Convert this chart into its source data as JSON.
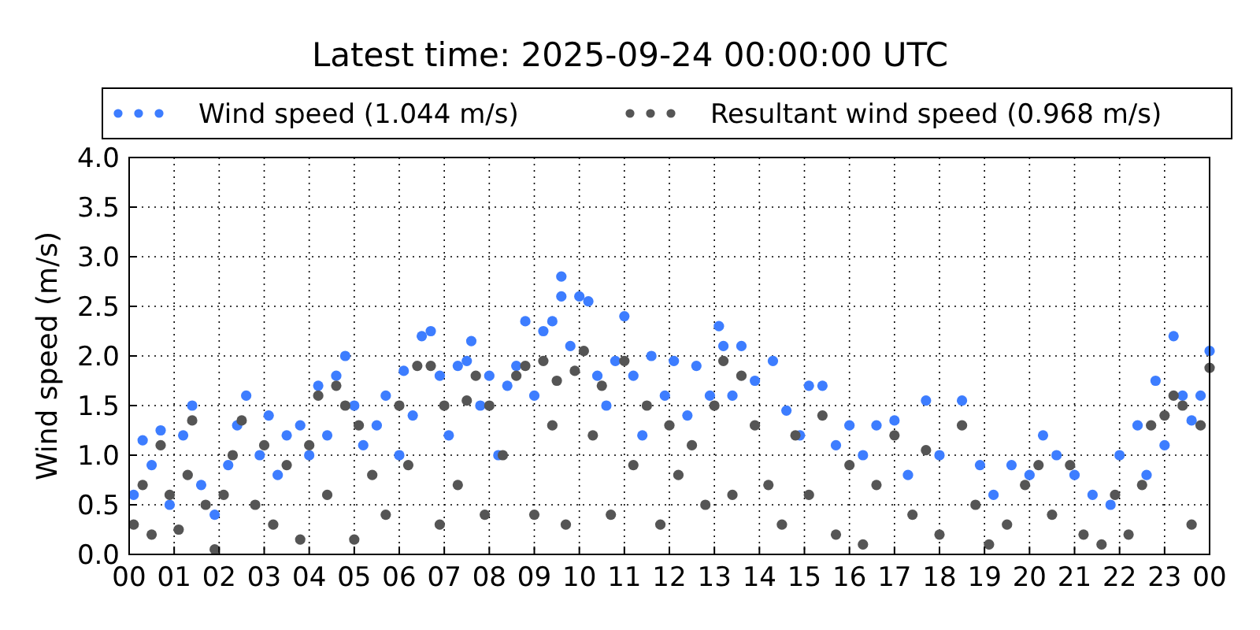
{
  "chart_data": {
    "type": "scatter",
    "title": "Latest time: 2025-09-24 00:00:00 UTC",
    "ylabel": "Wind speed (m/s)",
    "xlim": [
      0,
      24
    ],
    "xticks": [
      {
        "value": 0,
        "label": "00"
      },
      {
        "value": 1,
        "label": "01"
      },
      {
        "value": 2,
        "label": "02"
      },
      {
        "value": 3,
        "label": "03"
      },
      {
        "value": 4,
        "label": "04"
      },
      {
        "value": 5,
        "label": "05"
      },
      {
        "value": 6,
        "label": "06"
      },
      {
        "value": 7,
        "label": "07"
      },
      {
        "value": 8,
        "label": "08"
      },
      {
        "value": 9,
        "label": "09"
      },
      {
        "value": 10,
        "label": "10"
      },
      {
        "value": 11,
        "label": "11"
      },
      {
        "value": 12,
        "label": "12"
      },
      {
        "value": 13,
        "label": "13"
      },
      {
        "value": 14,
        "label": "14"
      },
      {
        "value": 15,
        "label": "15"
      },
      {
        "value": 16,
        "label": "16"
      },
      {
        "value": 17,
        "label": "17"
      },
      {
        "value": 18,
        "label": "18"
      },
      {
        "value": 19,
        "label": "19"
      },
      {
        "value": 20,
        "label": "20"
      },
      {
        "value": 21,
        "label": "21"
      },
      {
        "value": 22,
        "label": "22"
      },
      {
        "value": 23,
        "label": "23"
      },
      {
        "value": 24,
        "label": "00"
      }
    ],
    "ylim": [
      0,
      4
    ],
    "yticks": [
      {
        "value": 0,
        "label": "0.0"
      },
      {
        "value": 0.5,
        "label": "0.5"
      },
      {
        "value": 1,
        "label": "1.0"
      },
      {
        "value": 1.5,
        "label": "1.5"
      },
      {
        "value": 2,
        "label": "2.0"
      },
      {
        "value": 2.5,
        "label": "2.5"
      },
      {
        "value": 3,
        "label": "3.0"
      },
      {
        "value": 3.5,
        "label": "3.5"
      },
      {
        "value": 4,
        "label": "4.0"
      }
    ],
    "grid": true,
    "legend": "top",
    "marker": "circle",
    "series": [
      {
        "name": "Wind speed (1.044 m/s)",
        "color": "#3d7dff",
        "x": [
          0.1,
          0.3,
          0.5,
          0.7,
          0.9,
          1.2,
          1.4,
          1.6,
          1.9,
          2.2,
          2.4,
          2.6,
          2.9,
          3.1,
          3.3,
          3.5,
          3.8,
          4.0,
          4.2,
          4.4,
          4.6,
          4.8,
          5.0,
          5.2,
          5.5,
          5.7,
          6.0,
          6.1,
          6.3,
          6.5,
          6.7,
          6.9,
          7.1,
          7.3,
          7.5,
          7.6,
          7.8,
          8.0,
          8.2,
          8.4,
          8.6,
          8.8,
          9.0,
          9.2,
          9.4,
          9.6,
          9.6,
          9.8,
          10.0,
          10.2,
          10.4,
          10.6,
          10.8,
          11.0,
          11.2,
          11.4,
          11.6,
          11.9,
          12.1,
          12.4,
          12.6,
          12.9,
          13.1,
          13.2,
          13.4,
          13.6,
          13.9,
          14.3,
          14.6,
          14.9,
          15.1,
          15.4,
          15.7,
          16.0,
          16.3,
          16.6,
          17.0,
          17.3,
          17.7,
          18.0,
          18.5,
          18.9,
          19.2,
          19.6,
          20.0,
          20.3,
          20.6,
          21.0,
          21.4,
          21.8,
          22.0,
          22.4,
          22.6,
          22.8,
          23.0,
          23.2,
          23.4,
          23.6,
          23.8,
          24.0
        ],
        "values": [
          0.6,
          1.15,
          0.9,
          1.25,
          0.5,
          1.2,
          1.5,
          0.7,
          0.4,
          0.9,
          1.3,
          1.6,
          1.0,
          1.4,
          0.8,
          1.2,
          1.3,
          1.0,
          1.7,
          1.2,
          1.8,
          2.0,
          1.5,
          1.1,
          1.3,
          1.6,
          1.0,
          1.85,
          1.4,
          2.2,
          2.25,
          1.8,
          1.2,
          1.9,
          1.95,
          2.15,
          1.5,
          1.8,
          1.0,
          1.7,
          1.9,
          2.35,
          1.6,
          2.25,
          2.35,
          2.8,
          2.6,
          2.1,
          2.6,
          2.55,
          1.8,
          1.5,
          1.95,
          2.4,
          1.8,
          1.2,
          2.0,
          1.6,
          1.95,
          1.4,
          1.9,
          1.6,
          2.3,
          2.1,
          1.6,
          2.1,
          1.75,
          1.95,
          1.45,
          1.2,
          1.7,
          1.7,
          1.1,
          1.3,
          1.0,
          1.3,
          1.35,
          0.8,
          1.55,
          1.0,
          1.55,
          0.9,
          0.6,
          0.9,
          0.8,
          1.2,
          1.0,
          0.8,
          0.6,
          0.5,
          1.0,
          1.3,
          0.8,
          1.75,
          1.1,
          2.2,
          1.6,
          1.35,
          1.6,
          2.05
        ]
      },
      {
        "name": "Resultant wind speed (0.968 m/s)",
        "color": "#555555",
        "x": [
          0.1,
          0.3,
          0.5,
          0.7,
          0.9,
          1.1,
          1.3,
          1.4,
          1.7,
          1.9,
          2.1,
          2.3,
          2.5,
          2.8,
          3.0,
          3.2,
          3.5,
          3.8,
          4.0,
          4.2,
          4.4,
          4.6,
          4.8,
          5.0,
          5.1,
          5.4,
          5.7,
          6.0,
          6.2,
          6.4,
          6.7,
          6.9,
          7.0,
          7.3,
          7.5,
          7.7,
          7.9,
          8.0,
          8.3,
          8.6,
          8.8,
          9.0,
          9.2,
          9.4,
          9.5,
          9.7,
          9.9,
          10.1,
          10.3,
          10.5,
          10.7,
          11.0,
          11.2,
          11.5,
          11.8,
          12.0,
          12.2,
          12.5,
          12.8,
          13.0,
          13.2,
          13.4,
          13.6,
          13.9,
          14.2,
          14.5,
          14.8,
          15.1,
          15.4,
          15.7,
          16.0,
          16.3,
          16.6,
          17.0,
          17.4,
          17.7,
          18.0,
          18.5,
          18.8,
          19.1,
          19.5,
          19.9,
          20.2,
          20.5,
          20.9,
          21.2,
          21.6,
          21.9,
          22.2,
          22.5,
          22.7,
          23.0,
          23.2,
          23.4,
          23.6,
          23.8,
          24.0
        ],
        "values": [
          0.3,
          0.7,
          0.2,
          1.1,
          0.6,
          0.25,
          0.8,
          1.35,
          0.5,
          0.05,
          0.6,
          1.0,
          1.35,
          0.5,
          1.1,
          0.3,
          0.9,
          0.15,
          1.1,
          1.6,
          0.6,
          1.7,
          1.5,
          0.15,
          1.3,
          0.8,
          0.4,
          1.5,
          0.9,
          1.9,
          1.9,
          0.3,
          1.5,
          0.7,
          1.55,
          1.8,
          0.4,
          1.5,
          1.0,
          1.8,
          1.9,
          0.4,
          1.95,
          1.3,
          1.75,
          0.3,
          1.85,
          2.05,
          1.2,
          1.7,
          0.4,
          1.95,
          0.9,
          1.5,
          0.3,
          1.3,
          0.8,
          1.1,
          0.5,
          1.5,
          1.95,
          0.6,
          1.8,
          1.3,
          0.7,
          0.3,
          1.2,
          0.6,
          1.4,
          0.2,
          0.9,
          0.1,
          0.7,
          1.2,
          0.4,
          1.05,
          0.2,
          1.3,
          0.5,
          0.1,
          0.3,
          0.7,
          0.9,
          0.4,
          0.9,
          0.2,
          0.1,
          0.6,
          0.2,
          0.7,
          1.3,
          1.4,
          1.6,
          1.5,
          0.3,
          1.3,
          1.88
        ]
      }
    ]
  }
}
